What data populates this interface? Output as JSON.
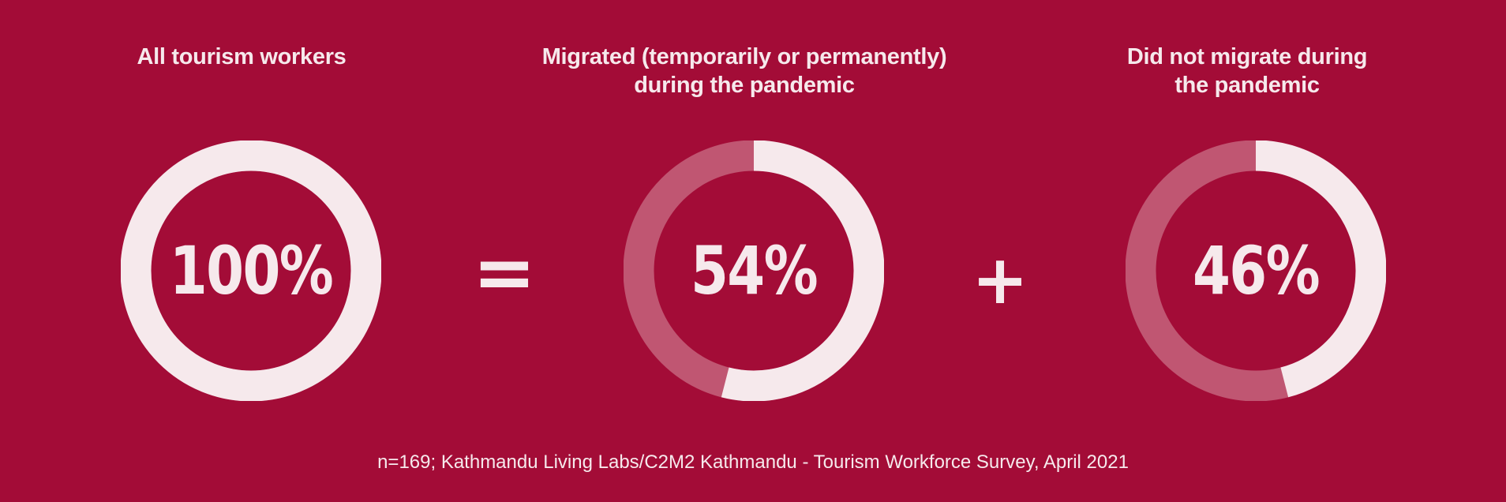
{
  "colors": {
    "background": "#a30c37",
    "ring_filled": "#f6e9ec",
    "ring_remainder": "#c05672",
    "text": "#f6e9ec"
  },
  "operators": {
    "equals": "=",
    "plus": "+"
  },
  "source": "n=169; Kathmandu Living Labs/C2M2 Kathmandu - Tourism Workforce Survey, April 2021",
  "chart_data": [
    {
      "type": "pie",
      "title": "All tourism workers",
      "label": "100%",
      "value": 100,
      "total": 100
    },
    {
      "type": "pie",
      "title": "Migrated (temporarily or permanently)\nduring the pandemic",
      "label": "54%",
      "value": 54,
      "total": 100
    },
    {
      "type": "pie",
      "title": "Did not migrate during\nthe pandemic",
      "label": "46%",
      "value": 46,
      "total": 100
    }
  ]
}
